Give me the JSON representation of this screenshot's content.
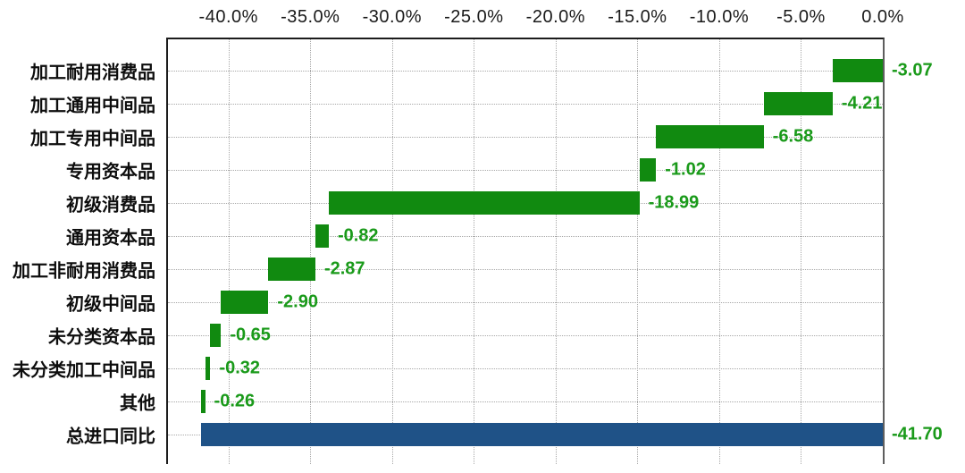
{
  "chart_data": {
    "type": "bar",
    "subtype": "horizontal-waterfall",
    "title": "",
    "categories": [
      "加工耐用消费品",
      "加工通用中间品",
      "加工专用中间品",
      "专用资本品",
      "初级消费品",
      "通用资本品",
      "加工非耐用消费品",
      "初级中间品",
      "未分类资本品",
      "未分类加工中间品",
      "其他",
      "总进口同比"
    ],
    "values": [
      -3.07,
      -4.21,
      -6.58,
      -1.02,
      -18.99,
      -0.82,
      -2.87,
      -2.9,
      -0.65,
      -0.32,
      -0.26,
      -41.7
    ],
    "value_labels": [
      "-3.07",
      "-4.21",
      "-6.58",
      "-1.02",
      "-18.99",
      "-0.82",
      "-2.87",
      "-2.90",
      "-0.65",
      "-0.32",
      "-0.26",
      "-41.70"
    ],
    "is_total": [
      false,
      false,
      false,
      false,
      false,
      false,
      false,
      false,
      false,
      false,
      false,
      true
    ],
    "x_axis": {
      "position": "top",
      "ticks": [
        "-40.0%",
        "-35.0%",
        "-30.0%",
        "-25.0%",
        "-20.0%",
        "-15.0%",
        "-10.0%",
        "-5.0%",
        "0.0%"
      ],
      "tick_values": [
        -40,
        -35,
        -30,
        -25,
        -20,
        -15,
        -10,
        -5,
        0
      ],
      "min": -43.7,
      "max": 0
    },
    "grid": true,
    "legend": false,
    "colors": {
      "segment_bar": "#118a10",
      "total_bar": "#1f5287",
      "value_label": "#1a9a1a",
      "tick_text": "#1a1a1a",
      "category_text": "#0d0d0d",
      "gridline": "#a8a8a8",
      "axis_line": "#1c1c1c"
    }
  }
}
